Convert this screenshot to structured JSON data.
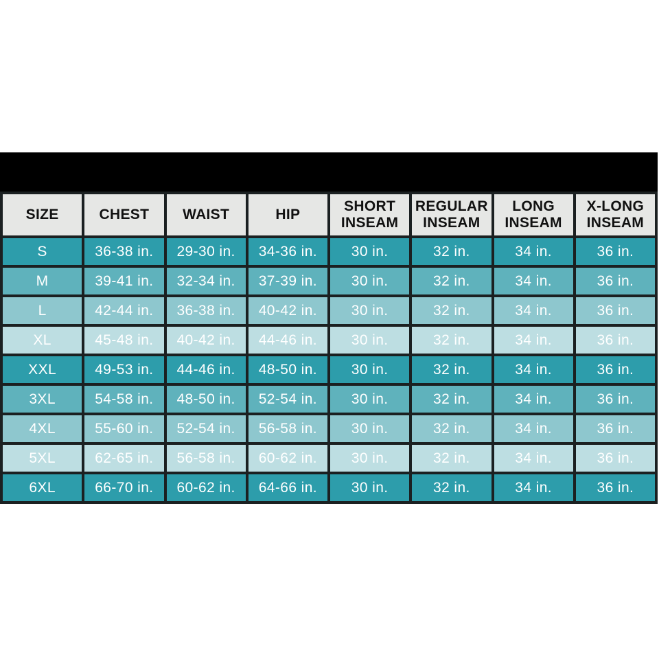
{
  "banner": {
    "text": ""
  },
  "chart_data": {
    "type": "table",
    "columns": [
      "SIZE",
      "CHEST",
      "WAIST",
      "HIP",
      "SHORT INSEAM",
      "REGULAR INSEAM",
      "LONG INSEAM",
      "X-LONG INSEAM"
    ],
    "rows": [
      [
        "S",
        "36-38 in.",
        "29-30 in.",
        "34-36 in.",
        "30 in.",
        "32 in.",
        "34 in.",
        "36 in."
      ],
      [
        "M",
        "39-41 in.",
        "32-34 in.",
        "37-39 in.",
        "30 in.",
        "32 in.",
        "34 in.",
        "36 in."
      ],
      [
        "L",
        "42-44 in.",
        "36-38 in.",
        "40-42 in.",
        "30 in.",
        "32 in.",
        "34 in.",
        "36 in."
      ],
      [
        "XL",
        "45-48 in.",
        "40-42 in.",
        "44-46 in.",
        "30 in.",
        "32 in.",
        "34 in.",
        "36 in."
      ],
      [
        "XXL",
        "49-53 in.",
        "44-46 in.",
        "48-50 in.",
        "30 in.",
        "32 in.",
        "34 in.",
        "36 in."
      ],
      [
        "3XL",
        "54-58 in.",
        "48-50 in.",
        "52-54 in.",
        "30 in.",
        "32 in.",
        "34 in.",
        "36 in."
      ],
      [
        "4XL",
        "55-60 in.",
        "52-54 in.",
        "56-58 in.",
        "30 in.",
        "32 in.",
        "34 in.",
        "36 in."
      ],
      [
        "5XL",
        "62-65 in.",
        "56-58 in.",
        "60-62 in.",
        "30 in.",
        "32 in.",
        "34 in.",
        "36 in."
      ],
      [
        "6XL",
        "66-70 in.",
        "60-62 in.",
        "64-66 in.",
        "30 in.",
        "32 in.",
        "34 in.",
        "36 in."
      ]
    ],
    "layout": {
      "header_position": "top",
      "banner": "solid black band above header, no text",
      "row_shade_cycle_length": 4,
      "grid": true
    }
  },
  "styles": {
    "page_bg": "#ffffff",
    "banner_bg": "#000000",
    "header_bg": "#e6e7e5",
    "header_text": "#111111",
    "border_color": "#1b2021",
    "cell_text": "#ffffff",
    "row_shades": [
      "#2d9dab",
      "#5fb2bc",
      "#8ec7ce",
      "#bddee2"
    ]
  }
}
